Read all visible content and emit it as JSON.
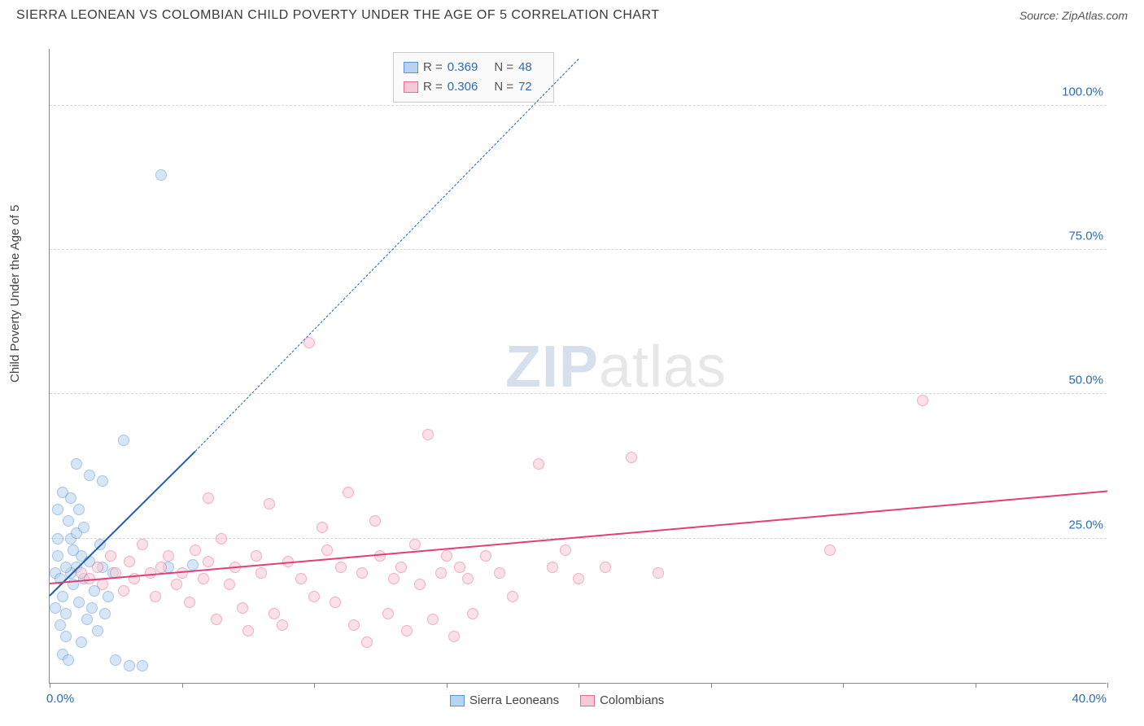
{
  "header": {
    "title": "SIERRA LEONEAN VS COLOMBIAN CHILD POVERTY UNDER THE AGE OF 5 CORRELATION CHART",
    "source_prefix": "Source: ",
    "source_name": "ZipAtlas.com"
  },
  "watermark": {
    "part1": "ZIP",
    "part2": "atlas"
  },
  "chart": {
    "type": "scatter",
    "y_axis_label": "Child Poverty Under the Age of 5",
    "background_color": "#ffffff",
    "grid_color": "#d5d5d5",
    "axis_color": "#888888",
    "tick_label_color": "#2b6cb0",
    "tick_fontsize": 15,
    "label_fontsize": 15,
    "xlim": [
      0,
      40
    ],
    "ylim": [
      0,
      110
    ],
    "y_ticks": [
      25,
      50,
      75,
      100
    ],
    "y_tick_labels": [
      "25.0%",
      "50.0%",
      "75.0%",
      "100.0%"
    ],
    "x_ticks_minor": [
      0,
      5,
      10,
      15,
      20,
      25,
      30,
      35,
      40
    ],
    "x_axis_left_label": "0.0%",
    "x_axis_right_label": "40.0%",
    "marker_radius": 7,
    "series": [
      {
        "name": "Sierra Leoneans",
        "legend_label": "Sierra Leoneans",
        "R_label": "R = ",
        "R_value": "0.369",
        "N_label": "N = ",
        "N_value": "48",
        "fill": "#b8d3f0",
        "stroke": "#5a94d6",
        "fill_opacity": 0.55,
        "trend": {
          "color": "#1f5fb0",
          "width": 2,
          "x1": 0,
          "y1": 15,
          "x2_solid": 5.5,
          "y2_solid": 40,
          "x2_dash": 20,
          "y2_dash": 108
        },
        "points": [
          [
            0.2,
            19
          ],
          [
            0.3,
            22
          ],
          [
            0.5,
            15
          ],
          [
            0.4,
            18
          ],
          [
            0.6,
            12
          ],
          [
            0.8,
            25
          ],
          [
            0.3,
            30
          ],
          [
            1.0,
            20
          ],
          [
            0.5,
            33
          ],
          [
            0.7,
            28
          ],
          [
            1.2,
            22
          ],
          [
            0.9,
            17
          ],
          [
            1.1,
            14
          ],
          [
            0.4,
            10
          ],
          [
            0.6,
            8
          ],
          [
            0.8,
            19
          ],
          [
            1.5,
            21
          ],
          [
            1.0,
            26
          ],
          [
            1.3,
            18
          ],
          [
            0.2,
            13
          ],
          [
            0.5,
            5
          ],
          [
            0.7,
            4
          ],
          [
            1.4,
            11
          ],
          [
            1.8,
            9
          ],
          [
            2.0,
            20
          ],
          [
            2.2,
            15
          ],
          [
            2.5,
            4
          ],
          [
            3.0,
            3
          ],
          [
            1.2,
            7
          ],
          [
            1.6,
            13
          ],
          [
            1.9,
            24
          ],
          [
            2.4,
            19
          ],
          [
            1.5,
            36
          ],
          [
            1.0,
            38
          ],
          [
            2.8,
            42
          ],
          [
            2.0,
            35
          ],
          [
            3.5,
            3
          ],
          [
            1.1,
            30
          ],
          [
            0.9,
            23
          ],
          [
            0.6,
            20
          ],
          [
            4.5,
            20
          ],
          [
            5.4,
            20.5
          ],
          [
            4.2,
            88
          ],
          [
            0.3,
            25
          ],
          [
            0.8,
            32
          ],
          [
            1.3,
            27
          ],
          [
            1.7,
            16
          ],
          [
            2.1,
            12
          ]
        ]
      },
      {
        "name": "Colombians",
        "legend_label": "Colombians",
        "R_label": "R = ",
        "R_value": "0.306",
        "N_label": "N = ",
        "N_value": "72",
        "fill": "#f6c9d6",
        "stroke": "#e86b94",
        "fill_opacity": 0.55,
        "trend": {
          "color": "#e23f78",
          "width": 2,
          "x1": 0,
          "y1": 17,
          "x2_solid": 40,
          "y2_solid": 33
        },
        "points": [
          [
            1.2,
            19
          ],
          [
            1.5,
            18
          ],
          [
            1.8,
            20
          ],
          [
            2.0,
            17
          ],
          [
            2.3,
            22
          ],
          [
            2.5,
            19
          ],
          [
            2.8,
            16
          ],
          [
            3.0,
            21
          ],
          [
            3.2,
            18
          ],
          [
            3.5,
            24
          ],
          [
            3.8,
            19
          ],
          [
            4.0,
            15
          ],
          [
            4.2,
            20
          ],
          [
            4.5,
            22
          ],
          [
            4.8,
            17
          ],
          [
            5.0,
            19
          ],
          [
            5.3,
            14
          ],
          [
            5.5,
            23
          ],
          [
            5.8,
            18
          ],
          [
            6.0,
            21
          ],
          [
            6.3,
            11
          ],
          [
            6.5,
            25
          ],
          [
            6.8,
            17
          ],
          [
            7.0,
            20
          ],
          [
            7.3,
            13
          ],
          [
            7.5,
            9
          ],
          [
            7.8,
            22
          ],
          [
            8.0,
            19
          ],
          [
            8.3,
            31
          ],
          [
            8.5,
            12
          ],
          [
            8.8,
            10
          ],
          [
            9.0,
            21
          ],
          [
            9.5,
            18
          ],
          [
            9.8,
            59
          ],
          [
            10.0,
            15
          ],
          [
            10.3,
            27
          ],
          [
            10.5,
            23
          ],
          [
            10.8,
            14
          ],
          [
            11.0,
            20
          ],
          [
            11.3,
            33
          ],
          [
            11.5,
            10
          ],
          [
            11.8,
            19
          ],
          [
            12.0,
            7
          ],
          [
            12.3,
            28
          ],
          [
            12.5,
            22
          ],
          [
            12.8,
            12
          ],
          [
            13.0,
            18
          ],
          [
            13.3,
            20
          ],
          [
            13.5,
            9
          ],
          [
            13.8,
            24
          ],
          [
            14.0,
            17
          ],
          [
            14.3,
            43
          ],
          [
            14.5,
            11
          ],
          [
            14.8,
            19
          ],
          [
            15.0,
            22
          ],
          [
            15.3,
            8
          ],
          [
            15.5,
            20
          ],
          [
            15.8,
            18
          ],
          [
            16.0,
            12
          ],
          [
            16.5,
            22
          ],
          [
            17.0,
            19
          ],
          [
            17.5,
            15
          ],
          [
            18.5,
            38
          ],
          [
            19.0,
            20
          ],
          [
            19.5,
            23
          ],
          [
            20.0,
            18
          ],
          [
            21.0,
            20
          ],
          [
            22.0,
            39
          ],
          [
            23.0,
            19
          ],
          [
            29.5,
            23
          ],
          [
            33.0,
            49
          ],
          [
            6.0,
            32
          ]
        ]
      }
    ]
  }
}
